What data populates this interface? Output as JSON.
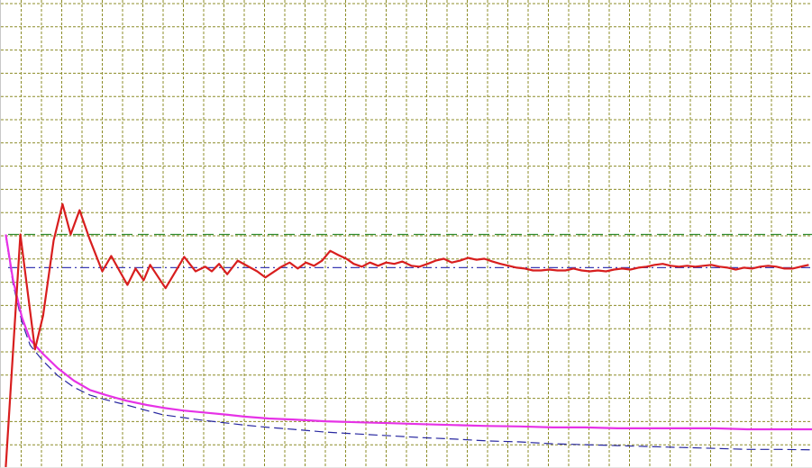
{
  "chart_data": {
    "type": "line",
    "title": "",
    "xlabel": "",
    "ylabel": "",
    "grid": true,
    "xlim": [
      0,
      100
    ],
    "ylim": [
      0,
      100
    ],
    "grid_color": "#8c8c28",
    "background": "#ffffff",
    "reference_lines": [
      {
        "id": "green-dash",
        "y": 49.8,
        "color": "#2e8b2e",
        "style": "dashed"
      },
      {
        "id": "blue-dashdot",
        "y": 42.7,
        "color": "#3c3cb4",
        "style": "dashdot"
      }
    ],
    "series": [
      {
        "id": "red-oscillating",
        "color": "#d81e1e",
        "style": "solid",
        "points": [
          [
            0.6,
            0
          ],
          [
            2.4,
            49.8
          ],
          [
            4.2,
            25.2
          ],
          [
            5.2,
            32.4
          ],
          [
            6.5,
            48.5
          ],
          [
            7.6,
            56.3
          ],
          [
            8.6,
            49.8
          ],
          [
            9.7,
            55.0
          ],
          [
            10.9,
            49.0
          ],
          [
            12.5,
            41.9
          ],
          [
            13.6,
            45.2
          ],
          [
            15.6,
            39.0
          ],
          [
            16.6,
            42.5
          ],
          [
            17.6,
            40.0
          ],
          [
            18.4,
            43.3
          ],
          [
            20.3,
            38.3
          ],
          [
            22.6,
            45.0
          ],
          [
            24.0,
            41.9
          ],
          [
            25.2,
            42.9
          ],
          [
            26.0,
            41.9
          ],
          [
            26.9,
            43.5
          ],
          [
            27.9,
            41.3
          ],
          [
            29.2,
            44.2
          ],
          [
            31.6,
            41.9
          ],
          [
            32.6,
            40.6
          ],
          [
            34.6,
            42.9
          ],
          [
            35.6,
            43.8
          ],
          [
            36.6,
            42.5
          ],
          [
            37.6,
            43.8
          ],
          [
            38.6,
            43.1
          ],
          [
            39.6,
            44.2
          ],
          [
            40.6,
            46.3
          ],
          [
            41.6,
            45.4
          ],
          [
            42.6,
            44.6
          ],
          [
            43.5,
            43.5
          ],
          [
            44.5,
            42.9
          ],
          [
            45.5,
            43.8
          ],
          [
            46.5,
            43.1
          ],
          [
            47.5,
            43.8
          ],
          [
            48.5,
            43.5
          ],
          [
            49.5,
            44.0
          ],
          [
            50.6,
            43.1
          ],
          [
            51.6,
            42.9
          ],
          [
            52.6,
            43.5
          ],
          [
            53.6,
            44.2
          ],
          [
            54.6,
            44.6
          ],
          [
            55.6,
            43.8
          ],
          [
            56.6,
            44.2
          ],
          [
            57.6,
            44.8
          ],
          [
            58.6,
            44.4
          ],
          [
            59.6,
            44.6
          ],
          [
            60.6,
            44.0
          ],
          [
            61.6,
            43.5
          ],
          [
            62.6,
            43.1
          ],
          [
            63.6,
            42.7
          ],
          [
            64.6,
            42.5
          ],
          [
            65.6,
            42.1
          ],
          [
            66.6,
            42.1
          ],
          [
            67.6,
            42.3
          ],
          [
            68.6,
            42.1
          ],
          [
            69.6,
            42.1
          ],
          [
            70.6,
            42.5
          ],
          [
            71.6,
            42.1
          ],
          [
            72.6,
            41.9
          ],
          [
            73.6,
            42.1
          ],
          [
            74.6,
            41.9
          ],
          [
            75.6,
            42.3
          ],
          [
            76.6,
            42.5
          ],
          [
            77.6,
            42.3
          ],
          [
            78.6,
            42.7
          ],
          [
            79.6,
            42.9
          ],
          [
            80.6,
            43.3
          ],
          [
            81.6,
            43.5
          ],
          [
            82.6,
            43.1
          ],
          [
            83.6,
            42.9
          ],
          [
            84.6,
            43.1
          ],
          [
            85.6,
            42.9
          ],
          [
            86.6,
            43.1
          ],
          [
            87.6,
            43.3
          ],
          [
            88.6,
            42.9
          ],
          [
            89.6,
            42.7
          ],
          [
            90.6,
            42.3
          ],
          [
            91.6,
            42.7
          ],
          [
            92.6,
            42.5
          ],
          [
            93.6,
            42.9
          ],
          [
            94.6,
            43.1
          ],
          [
            95.6,
            42.9
          ],
          [
            96.6,
            42.5
          ],
          [
            97.6,
            42.5
          ],
          [
            98.6,
            42.9
          ],
          [
            99.6,
            43.3
          ]
        ]
      },
      {
        "id": "magenta-decay",
        "color": "#e632e6",
        "style": "solid",
        "points": [
          [
            0.6,
            49.8
          ],
          [
            1.5,
            40.0
          ],
          [
            2.6,
            32.0
          ],
          [
            3.6,
            27.3
          ],
          [
            5.1,
            24.4
          ],
          [
            7.0,
            21.2
          ],
          [
            9.0,
            18.5
          ],
          [
            11.0,
            16.5
          ],
          [
            13.0,
            15.4
          ],
          [
            15.5,
            14.2
          ],
          [
            18.0,
            13.3
          ],
          [
            20.0,
            12.7
          ],
          [
            22.5,
            12.1
          ],
          [
            25.0,
            11.7
          ],
          [
            28.0,
            11.2
          ],
          [
            30.0,
            10.8
          ],
          [
            33.0,
            10.4
          ],
          [
            36.0,
            10.2
          ],
          [
            40.0,
            9.8
          ],
          [
            44.0,
            9.6
          ],
          [
            48.0,
            9.4
          ],
          [
            52.0,
            9.2
          ],
          [
            56.0,
            9.0
          ],
          [
            60.0,
            8.8
          ],
          [
            64.0,
            8.7
          ],
          [
            68.0,
            8.5
          ],
          [
            72.0,
            8.5
          ],
          [
            76.0,
            8.3
          ],
          [
            80.0,
            8.3
          ],
          [
            84.0,
            8.3
          ],
          [
            88.0,
            8.3
          ],
          [
            92.0,
            8.1
          ],
          [
            96.0,
            8.1
          ],
          [
            100.0,
            8.1
          ]
        ]
      },
      {
        "id": "blue-dash-decay",
        "color": "#2828a0",
        "style": "dashed",
        "points": [
          [
            0.6,
            49.4
          ],
          [
            1.5,
            39.2
          ],
          [
            2.6,
            31.0
          ],
          [
            3.6,
            26.1
          ],
          [
            5.1,
            22.9
          ],
          [
            7.0,
            19.6
          ],
          [
            9.0,
            17.1
          ],
          [
            11.0,
            15.4
          ],
          [
            13.0,
            14.4
          ],
          [
            15.5,
            13.3
          ],
          [
            18.0,
            12.1
          ],
          [
            20.0,
            11.2
          ],
          [
            22.5,
            10.6
          ],
          [
            25.0,
            10.0
          ],
          [
            28.0,
            9.4
          ],
          [
            30.0,
            9.0
          ],
          [
            33.0,
            8.5
          ],
          [
            36.0,
            8.1
          ],
          [
            40.0,
            7.5
          ],
          [
            44.0,
            7.1
          ],
          [
            48.0,
            6.7
          ],
          [
            52.0,
            6.3
          ],
          [
            56.0,
            6.0
          ],
          [
            60.0,
            5.6
          ],
          [
            64.0,
            5.4
          ],
          [
            68.0,
            5.0
          ],
          [
            72.0,
            4.8
          ],
          [
            76.0,
            4.6
          ],
          [
            80.0,
            4.4
          ],
          [
            84.0,
            4.2
          ],
          [
            88.0,
            4.0
          ],
          [
            92.0,
            3.8
          ],
          [
            96.0,
            3.8
          ],
          [
            100.0,
            3.7
          ]
        ]
      }
    ]
  }
}
